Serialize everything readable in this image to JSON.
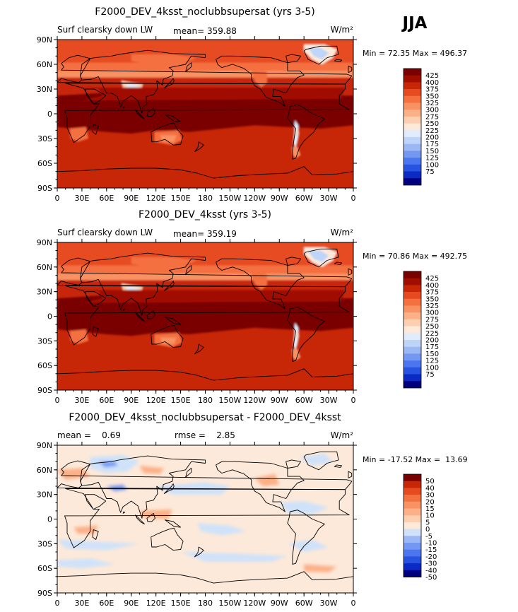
{
  "season": "JJA",
  "tick_labels": {
    "x": [
      "0",
      "30E",
      "60E",
      "90E",
      "120E",
      "150E",
      "180",
      "150W",
      "120W",
      "90W",
      "60W",
      "30W",
      "0"
    ],
    "y": [
      "90N",
      "60N",
      "30N",
      "0",
      "30S",
      "60S",
      "90S"
    ]
  },
  "colors": {
    "abs_levels": [
      "#00007f",
      "#0c29c4",
      "#2653e0",
      "#4c76f0",
      "#7498f2",
      "#9bb8f5",
      "#bed4f9",
      "#e0ecfb",
      "#fde9d9",
      "#fccfb0",
      "#fbb088",
      "#f99262",
      "#f4703f",
      "#e64b20",
      "#c72607",
      "#a00e00",
      "#7a0000"
    ],
    "diff_levels": [
      "#00007f",
      "#0c29c4",
      "#2653e0",
      "#4c76f0",
      "#7498f2",
      "#9bb8f5",
      "#cfe2f9",
      "#fde9d9",
      "#fccfb0",
      "#fbb088",
      "#f99262",
      "#f4703f",
      "#e64b20",
      "#c72607",
      "#7a0000"
    ]
  },
  "chart_data": [
    {
      "type": "heatmap",
      "title": "F2000_DEV_4ksst_noclubbsupersat (yrs 3-5)",
      "left_string": "Surf clearsky down LW",
      "center_string": "mean= 359.88",
      "units": "W/m²",
      "min_max": "Min =  72.35 Max = 496.37",
      "colorbar_labels": [
        "425",
        "400",
        "375",
        "350",
        "325",
        "300",
        "275",
        "250",
        "225",
        "200",
        "175",
        "150",
        "125",
        "100",
        "75"
      ],
      "xlim": [
        0,
        360
      ],
      "ylim": [
        -90,
        90
      ]
    },
    {
      "type": "heatmap",
      "title": "F2000_DEV_4ksst (yrs 3-5)",
      "left_string": "Surf clearsky down LW",
      "center_string": "mean= 359.19",
      "units": "W/m²",
      "min_max": "Min =  70.86 Max = 492.75",
      "colorbar_labels": [
        "425",
        "400",
        "375",
        "350",
        "325",
        "300",
        "275",
        "250",
        "225",
        "200",
        "175",
        "150",
        "125",
        "100",
        "75"
      ],
      "xlim": [
        0,
        360
      ],
      "ylim": [
        -90,
        90
      ]
    },
    {
      "type": "heatmap",
      "title": "F2000_DEV_4ksst_noclubbsupersat - F2000_DEV_4ksst",
      "left_string": "mean =    0.69",
      "center_string": "rmse =    2.85",
      "units": "W/m²",
      "min_max": "Min = -17.52 Max =  13.69",
      "colorbar_labels": [
        "50",
        "40",
        "30",
        "20",
        "15",
        "10",
        "5",
        "0",
        "-5",
        "-10",
        "-15",
        "-20",
        "-30",
        "-40",
        "-50"
      ],
      "xlim": [
        0,
        360
      ],
      "ylim": [
        -90,
        90
      ]
    }
  ]
}
